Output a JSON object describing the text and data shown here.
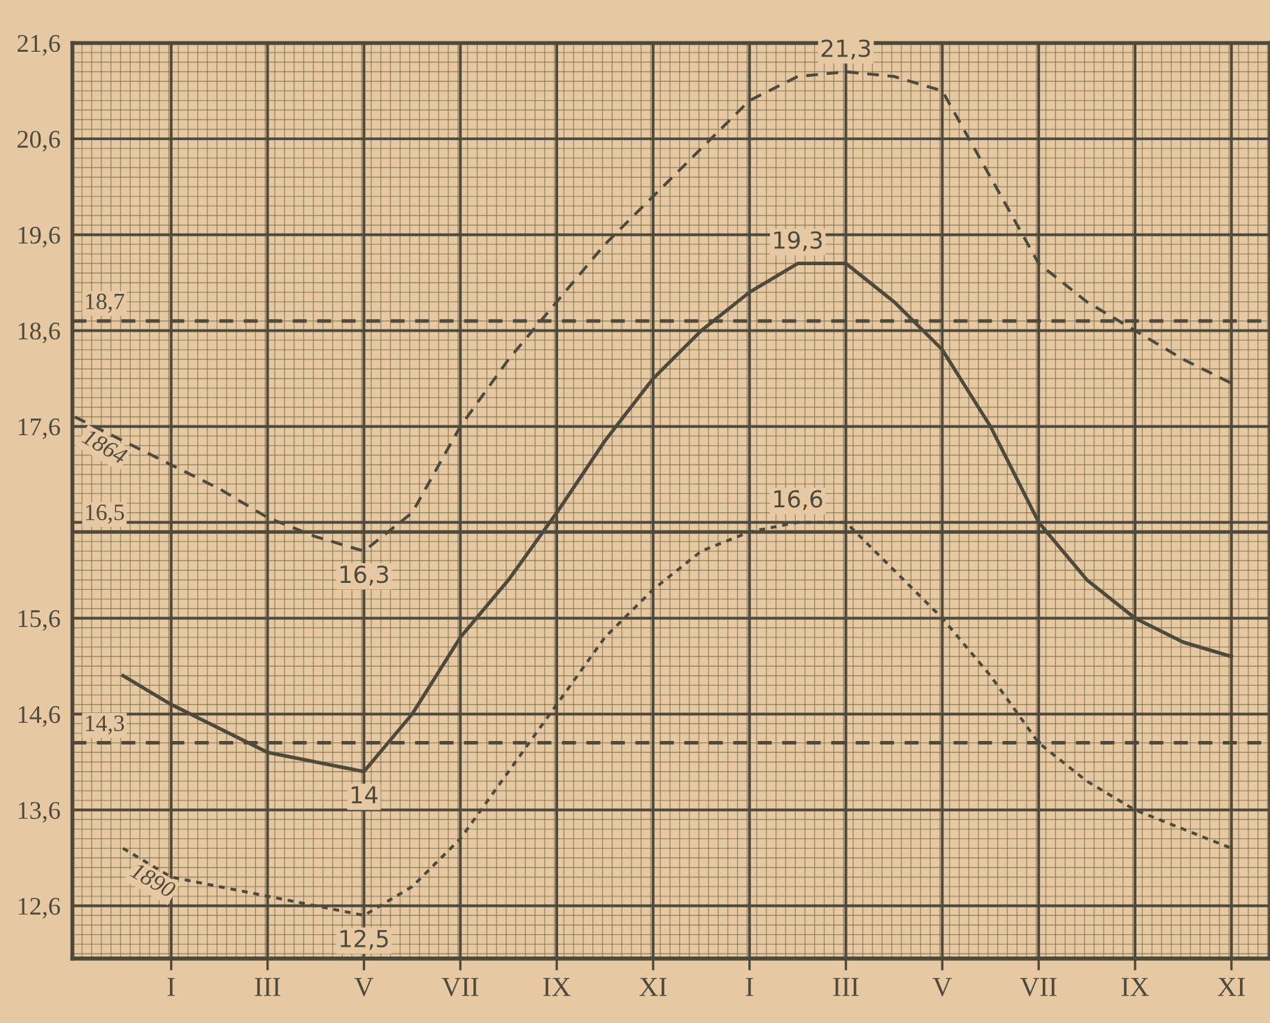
{
  "chart_data": {
    "type": "line",
    "categories": [
      null,
      null,
      "I",
      null,
      "III",
      null,
      "V",
      null,
      "VII",
      null,
      "IX",
      null,
      "XI",
      null,
      "I",
      null,
      "III",
      null,
      "V",
      null,
      "VII",
      null,
      "IX",
      null,
      "XI"
    ],
    "ylim": [
      12.05,
      21.6
    ],
    "yticks": [
      {
        "value": 12.6,
        "label": "12,6"
      },
      {
        "value": 13.6,
        "label": "13,6"
      },
      {
        "value": 14.6,
        "label": "14,6"
      },
      {
        "value": 15.6,
        "label": "15,6"
      },
      {
        "value": 16.6,
        "label": null
      },
      {
        "value": 17.6,
        "label": "17,6"
      },
      {
        "value": 18.6,
        "label": "18,6"
      },
      {
        "value": 19.6,
        "label": "19,6"
      },
      {
        "value": 20.6,
        "label": "20,6"
      },
      {
        "value": 21.6,
        "label": "21,6"
      }
    ],
    "grid": true,
    "series": [
      {
        "name": "1864",
        "color": "#4d4a3c",
        "line_style": "dashed",
        "values": [
          17.7,
          17.45,
          17.2,
          16.95,
          16.65,
          16.45,
          16.3,
          16.7,
          17.6,
          18.3,
          18.9,
          19.5,
          20.0,
          20.5,
          21.0,
          21.25,
          21.3,
          21.25,
          21.1,
          20.2,
          19.3,
          18.9,
          18.6,
          18.3,
          18.05
        ],
        "value_labels": [
          null,
          null,
          null,
          null,
          null,
          null,
          "16,3",
          null,
          null,
          null,
          null,
          null,
          null,
          null,
          null,
          null,
          "21,3",
          null,
          null,
          null,
          null,
          null,
          null,
          null,
          null
        ]
      },
      {
        "color": "#4d4a3c",
        "line_style": "solid",
        "values": [
          null,
          15.0,
          14.7,
          14.45,
          14.2,
          14.1,
          14.0,
          14.6,
          15.4,
          16.0,
          16.7,
          17.45,
          18.1,
          18.6,
          19.0,
          19.3,
          19.3,
          18.9,
          18.4,
          17.6,
          16.6,
          16.0,
          15.6,
          15.35,
          15.2
        ],
        "value_labels": [
          null,
          null,
          null,
          null,
          null,
          null,
          "14",
          null,
          null,
          null,
          null,
          null,
          null,
          null,
          null,
          "19,3",
          null,
          null,
          null,
          null,
          null,
          null,
          null,
          null,
          null
        ]
      },
      {
        "name": "1890",
        "color": "#4d4a3c",
        "line_style": "dotted",
        "values": [
          null,
          13.2,
          12.9,
          12.8,
          12.7,
          12.6,
          12.5,
          12.8,
          13.3,
          14.0,
          14.7,
          15.4,
          15.9,
          16.3,
          16.5,
          16.6,
          16.6,
          16.1,
          15.6,
          15.0,
          14.3,
          13.9,
          13.6,
          13.4,
          13.2
        ],
        "value_labels": [
          null,
          null,
          null,
          null,
          null,
          null,
          "12,5",
          null,
          null,
          null,
          null,
          null,
          null,
          null,
          null,
          "16,6",
          null,
          null,
          null,
          null,
          null,
          null,
          null,
          null,
          null
        ]
      }
    ],
    "ref_lines": [
      {
        "axis": "y",
        "value": 18.7,
        "label": "18,7",
        "line_style": "dashed",
        "color": "#4d4a3c"
      },
      {
        "axis": "y",
        "value": 16.5,
        "label": "16,5",
        "line_style": "solid",
        "color": "#4d4a3c"
      },
      {
        "axis": "y",
        "value": 14.3,
        "label": "14,3",
        "line_style": "dashed",
        "color": "#4d4a3c"
      }
    ]
  }
}
